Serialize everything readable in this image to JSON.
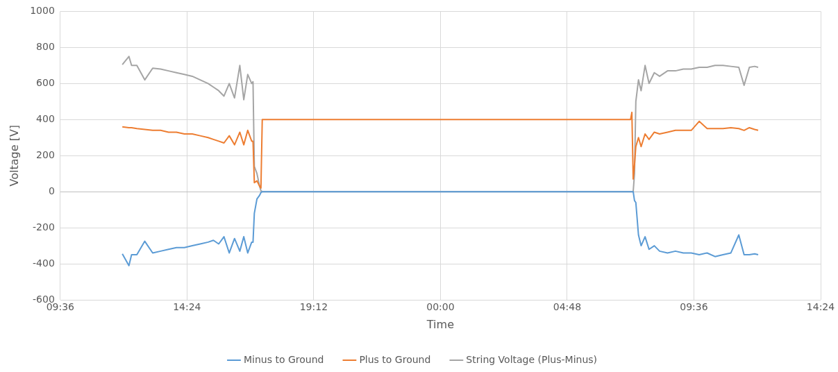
{
  "chart_data": {
    "type": "line",
    "xlabel": "Time",
    "ylabel": "Voltage [V]",
    "xlim": [
      "--01-01T09:36",
      "--01-02T14:24"
    ],
    "ylim": [
      -600,
      1000
    ],
    "xticks": [
      {
        "value": "--01-01T09:36",
        "label": "09:36"
      },
      {
        "value": "--01-01T14:24",
        "label": "14:24"
      },
      {
        "value": "--01-01T19:12",
        "label": "19:12"
      },
      {
        "value": "--01-02T00:00",
        "label": "00:00"
      },
      {
        "value": "--01-02T04:48",
        "label": "04:48"
      },
      {
        "value": "--01-02T09:36",
        "label": "09:36"
      },
      {
        "value": "--01-02T14:24",
        "label": "14:24"
      }
    ],
    "yticks": [
      -600,
      -400,
      -200,
      0,
      200,
      400,
      600,
      800,
      1000
    ],
    "grid": true,
    "legend": "bottom",
    "marker": "none",
    "x": [
      "--01-01T11:57",
      "--01-01T12:12",
      "--01-01T12:18",
      "--01-01T12:30",
      "--01-01T12:48",
      "--01-01T13:06",
      "--01-01T13:24",
      "--01-01T13:42",
      "--01-01T14:00",
      "--01-01T14:18",
      "--01-01T14:36",
      "--01-01T14:54",
      "--01-01T15:12",
      "--01-01T15:24",
      "--01-01T15:36",
      "--01-01T15:48",
      "--01-01T16:00",
      "--01-01T16:12",
      "--01-01T16:24",
      "--01-01T16:33",
      "--01-01T16:42",
      "--01-01T16:51",
      "--01-01T16:54",
      "--01-01T16:57",
      "--01-01T17:03",
      "--01-01T17:09",
      "--01-01T17:12",
      "--01-01T17:15",
      "--01-01T17:18",
      "--01-01T20:00",
      "--01-02T00:00",
      "--01-02T04:00",
      "--01-02T07:12",
      "--01-02T07:15",
      "--01-02T07:18",
      "--01-02T07:21",
      "--01-02T07:24",
      "--01-02T07:30",
      "--01-02T07:36",
      "--01-02T07:45",
      "--01-02T07:54",
      "--01-02T08:06",
      "--01-02T08:18",
      "--01-02T08:36",
      "--01-02T08:54",
      "--01-02T09:12",
      "--01-02T09:30",
      "--01-02T09:48",
      "--01-02T10:06",
      "--01-02T10:24",
      "--01-02T10:42",
      "--01-02T11:00",
      "--01-02T11:18",
      "--01-02T11:30",
      "--01-02T11:42",
      "--01-02T11:54",
      "--01-02T12:02"
    ],
    "series": [
      {
        "name": "Minus to Ground",
        "color": "#5b9bd5",
        "values": [
          -345,
          -410,
          -350,
          -350,
          -275,
          -340,
          -330,
          -320,
          -310,
          -310,
          -300,
          -290,
          -280,
          -270,
          -290,
          -250,
          -340,
          -260,
          -330,
          -250,
          -340,
          -280,
          -280,
          -120,
          -40,
          -20,
          -5,
          0,
          0,
          0,
          0,
          0,
          0,
          0,
          0,
          -50,
          -60,
          -240,
          -300,
          -250,
          -320,
          -300,
          -330,
          -340,
          -330,
          -340,
          -340,
          -350,
          -340,
          -360,
          -350,
          -340,
          -240,
          -350,
          -350,
          -345,
          -350
        ]
      },
      {
        "name": "Plus to Ground",
        "color": "#ed7d31",
        "values": [
          360,
          355,
          355,
          350,
          345,
          340,
          340,
          330,
          330,
          320,
          320,
          310,
          300,
          290,
          280,
          270,
          310,
          260,
          330,
          260,
          340,
          280,
          280,
          50,
          60,
          30,
          20,
          400,
          400,
          400,
          400,
          400,
          400,
          440,
          70,
          150,
          250,
          300,
          250,
          320,
          290,
          330,
          320,
          330,
          340,
          340,
          340,
          390,
          350,
          350,
          350,
          355,
          350,
          340,
          355,
          345,
          340
        ]
      },
      {
        "name": "String Voltage (Plus-Minus)",
        "color": "#a5a5a5",
        "values": [
          705,
          750,
          700,
          700,
          620,
          685,
          680,
          670,
          660,
          650,
          640,
          620,
          600,
          580,
          560,
          530,
          600,
          520,
          700,
          510,
          650,
          600,
          610,
          140,
          100,
          30,
          5,
          0,
          0,
          0,
          0,
          0,
          0,
          0,
          0,
          100,
          500,
          620,
          560,
          700,
          600,
          660,
          640,
          670,
          670,
          680,
          680,
          690,
          690,
          700,
          700,
          695,
          690,
          590,
          690,
          695,
          690
        ]
      }
    ]
  }
}
